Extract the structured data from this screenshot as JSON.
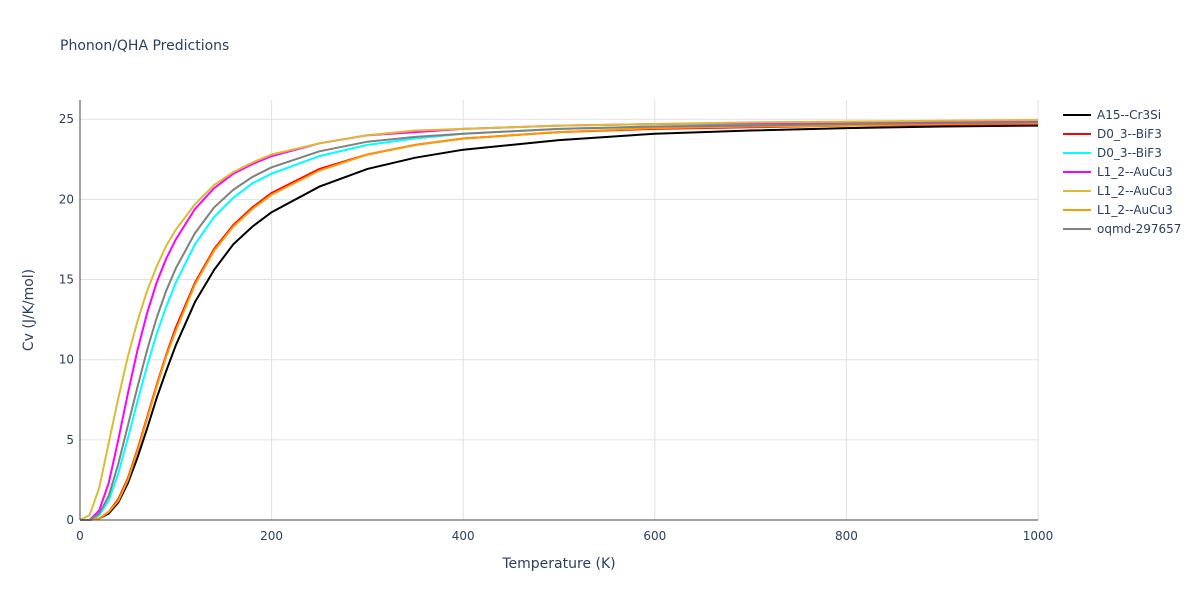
{
  "chart_data": {
    "type": "line",
    "title": "Phonon/QHA Predictions",
    "xlabel": "Temperature (K)",
    "ylabel": "Cv (J/K/mol)",
    "xlim": [
      0,
      1000
    ],
    "ylim": [
      0,
      26.2
    ],
    "xticks": [
      0,
      200,
      400,
      600,
      800,
      1000
    ],
    "yticks": [
      0,
      5,
      10,
      15,
      20,
      25
    ],
    "grid": true,
    "legend_position": "top-right",
    "x": [
      0,
      10,
      20,
      30,
      40,
      50,
      60,
      70,
      80,
      90,
      100,
      120,
      140,
      160,
      180,
      200,
      250,
      300,
      350,
      400,
      500,
      600,
      700,
      800,
      900,
      1000
    ],
    "series": [
      {
        "name": "A15--Cr3Si",
        "color": "#000000",
        "values": [
          0,
          0,
          0.1,
          0.4,
          1.1,
          2.3,
          3.9,
          5.7,
          7.6,
          9.3,
          10.9,
          13.6,
          15.6,
          17.2,
          18.3,
          19.2,
          20.8,
          21.9,
          22.6,
          23.1,
          23.7,
          24.1,
          24.3,
          24.45,
          24.55,
          24.6
        ]
      },
      {
        "name": "D0_3--BiF3",
        "color": "#ff0000",
        "values": [
          0,
          0,
          0.1,
          0.5,
          1.3,
          2.6,
          4.4,
          6.4,
          8.4,
          10.3,
          12.0,
          14.8,
          16.9,
          18.4,
          19.5,
          20.4,
          21.9,
          22.8,
          23.4,
          23.8,
          24.2,
          24.4,
          24.5,
          24.6,
          24.65,
          24.7
        ]
      },
      {
        "name": "D0_3--BiF3",
        "color": "#00ffff",
        "values": [
          0,
          0,
          0.3,
          1.2,
          2.9,
          5.1,
          7.4,
          9.6,
          11.6,
          13.3,
          14.8,
          17.2,
          18.9,
          20.1,
          21.0,
          21.6,
          22.7,
          23.4,
          23.8,
          24.1,
          24.4,
          24.55,
          24.65,
          24.7,
          24.75,
          24.8
        ]
      },
      {
        "name": "L1_2--AuCu3",
        "color": "#ff00ff",
        "values": [
          0,
          0,
          0.6,
          2.3,
          5.0,
          7.9,
          10.6,
          12.9,
          14.8,
          16.3,
          17.5,
          19.4,
          20.7,
          21.6,
          22.2,
          22.7,
          23.5,
          24.0,
          24.2,
          24.4,
          24.6,
          24.7,
          24.75,
          24.8,
          24.85,
          24.9
        ]
      },
      {
        "name": "L1_2--AuCu3",
        "color": "#dbbb33",
        "values": [
          0,
          0.3,
          2.0,
          4.8,
          7.6,
          10.2,
          12.4,
          14.3,
          15.8,
          17.1,
          18.1,
          19.7,
          20.9,
          21.7,
          22.3,
          22.8,
          23.5,
          24.0,
          24.3,
          24.4,
          24.6,
          24.7,
          24.8,
          24.85,
          24.9,
          24.95
        ]
      },
      {
        "name": "L1_2--AuCu3",
        "color": "#ff9900",
        "values": [
          0,
          0,
          0.1,
          0.5,
          1.2,
          2.5,
          4.3,
          6.3,
          8.3,
          10.2,
          11.8,
          14.7,
          16.8,
          18.3,
          19.4,
          20.3,
          21.8,
          22.8,
          23.4,
          23.8,
          24.2,
          24.45,
          24.55,
          24.6,
          24.7,
          24.75
        ]
      },
      {
        "name": "oqmd-297657",
        "color": "#808080",
        "values": [
          0,
          0,
          0.4,
          1.5,
          3.5,
          5.9,
          8.3,
          10.6,
          12.6,
          14.3,
          15.7,
          17.9,
          19.5,
          20.6,
          21.4,
          22.0,
          23.0,
          23.6,
          23.9,
          24.1,
          24.4,
          24.55,
          24.6,
          24.7,
          24.75,
          24.8
        ]
      }
    ]
  }
}
